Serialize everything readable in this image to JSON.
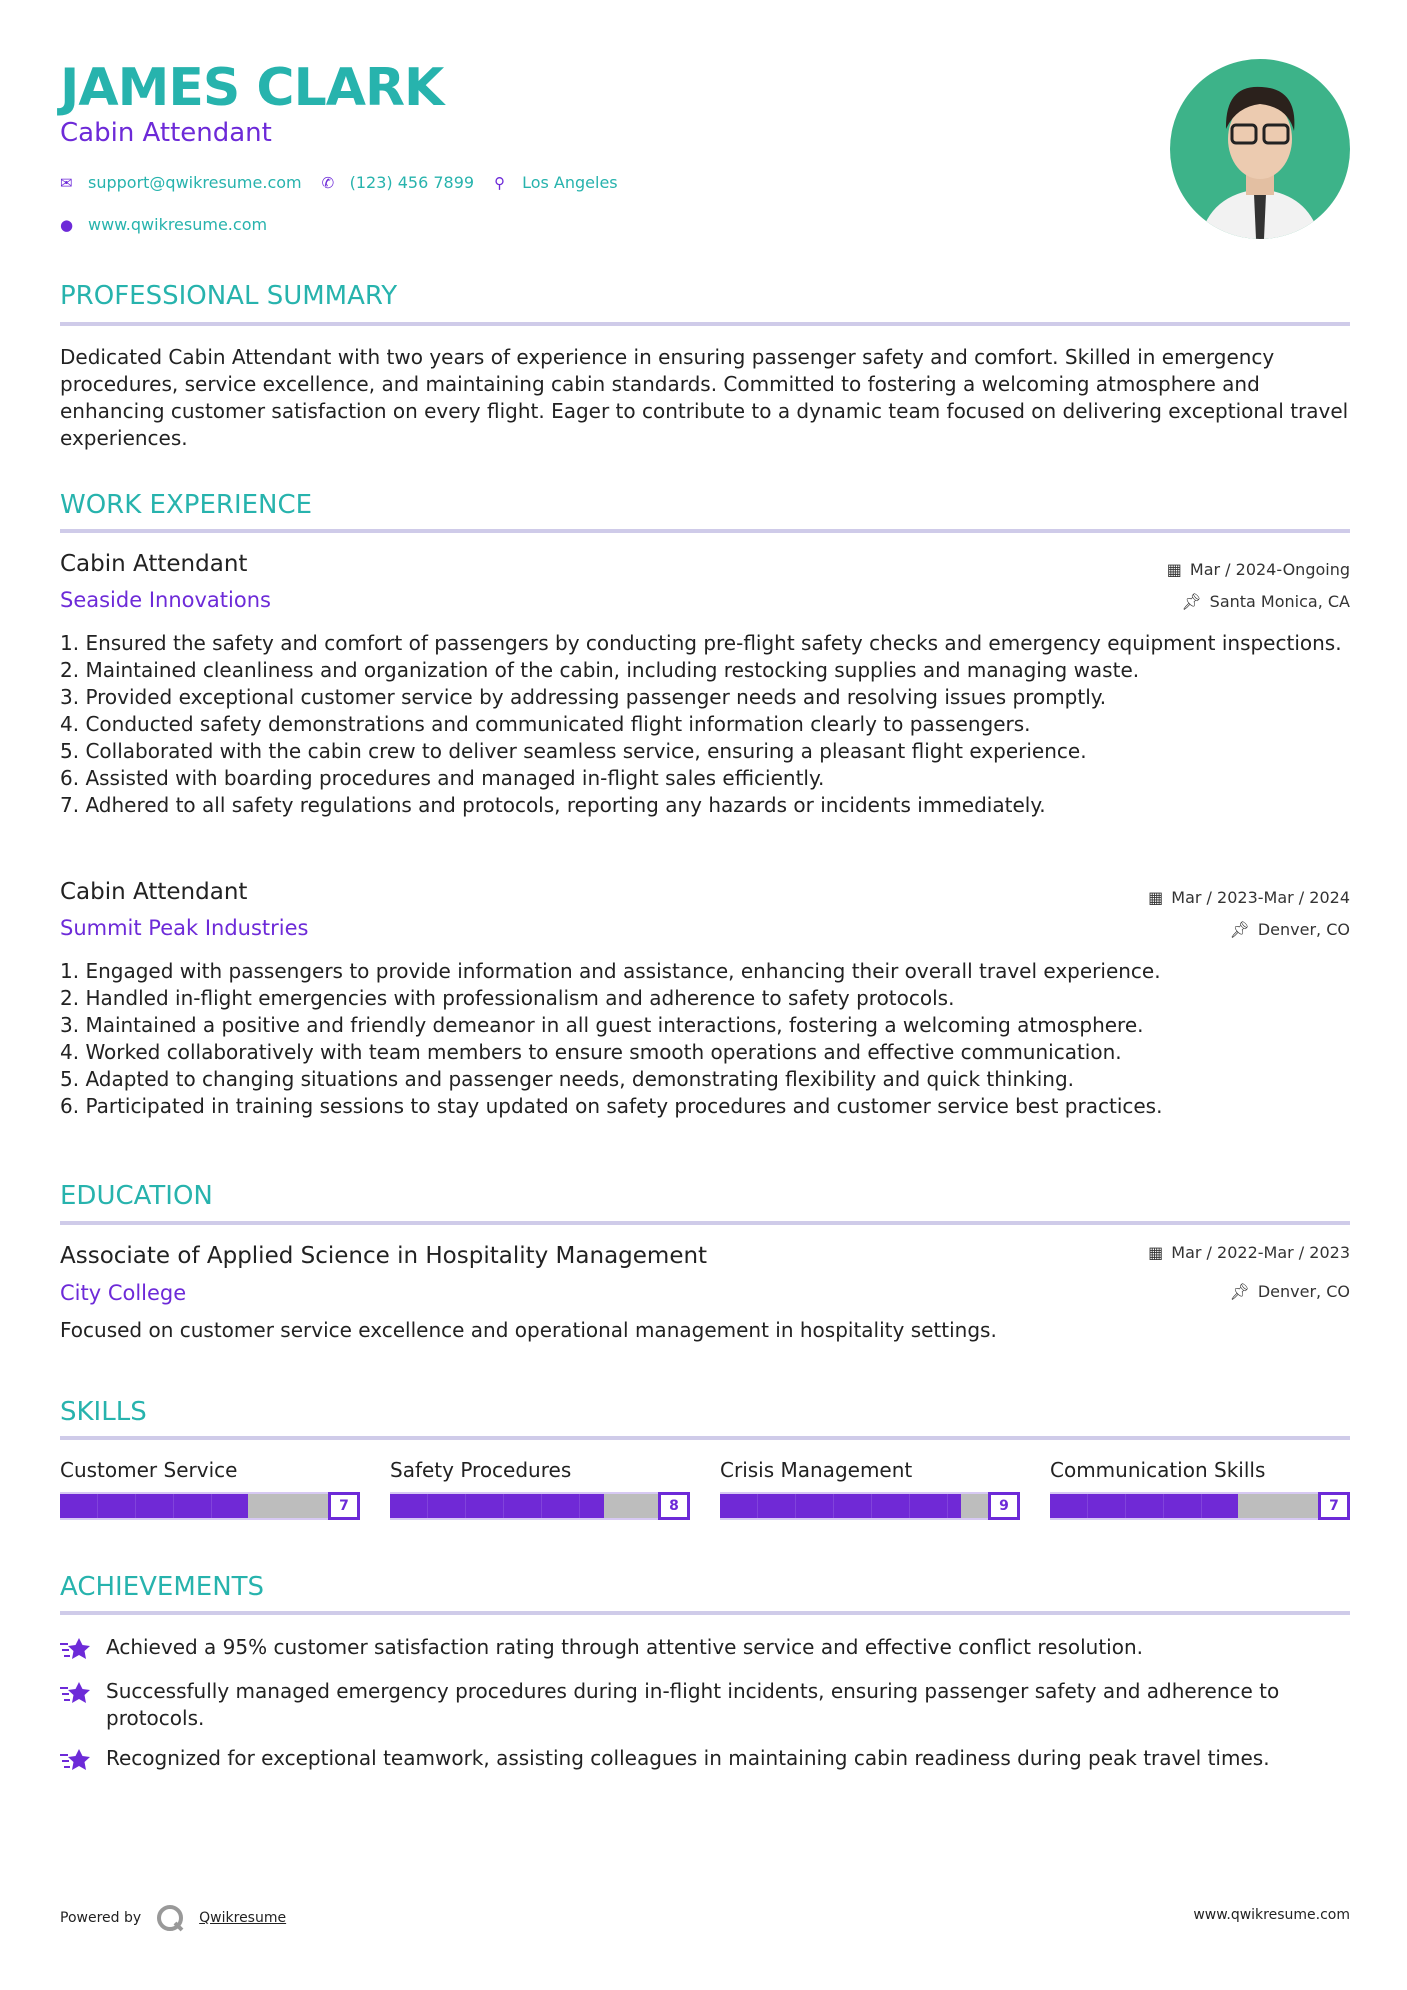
{
  "header": {
    "name": "JAMES CLARK",
    "title": "Cabin Attendant",
    "email": "support@qwikresume.com",
    "phone": "(123) 456 7899",
    "location": "Los Angeles",
    "website": "www.qwikresume.com"
  },
  "colors": {
    "accent": "#27b3ad",
    "secondary": "#6d2ad8",
    "divider": "#cfcbe9"
  },
  "summary": {
    "heading": "PROFESSIONAL SUMMARY",
    "text": "Dedicated Cabin Attendant with two years of experience in ensuring passenger safety and comfort. Skilled in emergency procedures, service excellence, and maintaining cabin standards. Committed to fostering a welcoming atmosphere and enhancing customer satisfaction on every flight. Eager to contribute to a dynamic team focused on delivering exceptional travel experiences."
  },
  "experience": {
    "heading": "WORK EXPERIENCE",
    "jobs": [
      {
        "title": "Cabin Attendant",
        "company": "Seaside Innovations",
        "date": "Mar / 2024-Ongoing",
        "location": "Santa Monica, CA",
        "items": [
          "1. Ensured the safety and comfort of passengers by conducting pre-flight safety checks and emergency equipment inspections.",
          "2. Maintained cleanliness and organization of the cabin, including restocking supplies and managing waste.",
          "3. Provided exceptional customer service by addressing passenger needs and resolving issues promptly.",
          "4. Conducted safety demonstrations and communicated flight information clearly to passengers.",
          "5. Collaborated with the cabin crew to deliver seamless service, ensuring a pleasant flight experience.",
          "6. Assisted with boarding procedures and managed in-flight sales efficiently.",
          "7. Adhered to all safety regulations and protocols, reporting any hazards or incidents immediately."
        ]
      },
      {
        "title": "Cabin Attendant",
        "company": "Summit Peak Industries",
        "date": "Mar / 2023-Mar / 2024",
        "location": "Denver, CO",
        "items": [
          "1. Engaged with passengers to provide information and assistance, enhancing their overall travel experience.",
          "2. Handled in-flight emergencies with professionalism and adherence to safety protocols.",
          "3. Maintained a positive and friendly demeanor in all guest interactions, fostering a welcoming atmosphere.",
          "4. Worked collaboratively with team members to ensure smooth operations and effective communication.",
          "5. Adapted to changing situations and passenger needs, demonstrating flexibility and quick thinking.",
          "6. Participated in training sessions to stay updated on safety procedures and customer service best practices."
        ]
      }
    ]
  },
  "education": {
    "heading": "EDUCATION",
    "degree": "Associate of Applied Science in Hospitality Management",
    "school": "City College",
    "date": "Mar / 2022-Mar / 2023",
    "location": "Denver, CO",
    "description": "Focused on customer service excellence and operational management in hospitality settings."
  },
  "skills": {
    "heading": "SKILLS",
    "items": [
      {
        "name": "Customer Service",
        "level": 7
      },
      {
        "name": "Safety Procedures",
        "level": 8
      },
      {
        "name": "Crisis Management",
        "level": 9
      },
      {
        "name": "Communication Skills",
        "level": 7
      }
    ]
  },
  "achievements": {
    "heading": "ACHIEVEMENTS",
    "items": [
      "Achieved a 95% customer satisfaction rating through attentive service and effective conflict resolution.",
      "Successfully managed emergency procedures during in-flight incidents, ensuring passenger safety and adherence to protocols.",
      "Recognized for exceptional teamwork, assisting colleagues in maintaining cabin readiness during peak travel times."
    ]
  },
  "footer": {
    "powered_by": "Powered by",
    "brand": "Qwikresume",
    "website": "www.qwikresume.com"
  }
}
